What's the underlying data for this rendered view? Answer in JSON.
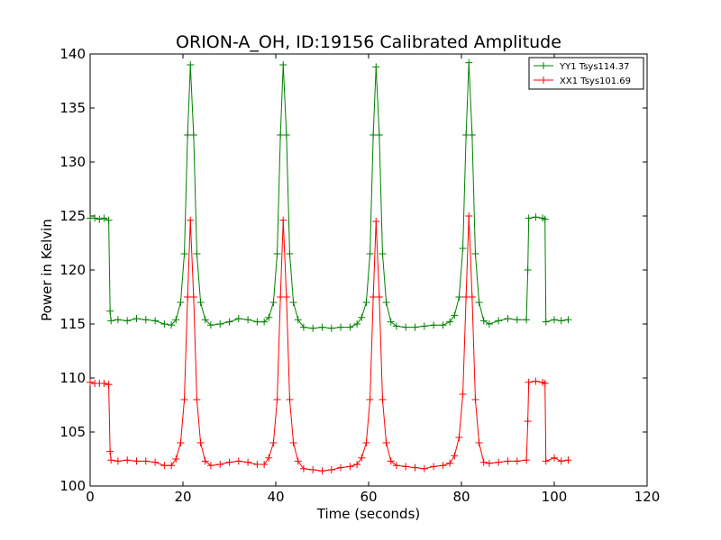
{
  "chart_data": {
    "type": "line",
    "title": "ORION-A_OH, ID:19156 Calibrated Amplitude",
    "xlabel": "Time (seconds)",
    "ylabel": "Power in Kelvin",
    "xlim": [
      0,
      120
    ],
    "ylim": [
      100,
      140
    ],
    "xticks": [
      "0",
      "20",
      "40",
      "60",
      "80",
      "100",
      "120"
    ],
    "yticks": [
      "100",
      "105",
      "110",
      "115",
      "120",
      "125",
      "130",
      "135",
      "140"
    ],
    "grid": false,
    "legend_position": "top-right",
    "series": [
      {
        "name": "YY1 Tsys114.37",
        "color": "#008000",
        "marker": "+",
        "points": [
          [
            0.0,
            124.8
          ],
          [
            1.0,
            124.8
          ],
          [
            2.0,
            124.7
          ],
          [
            3.0,
            124.8
          ],
          [
            4.0,
            124.6
          ],
          [
            4.3,
            116.2
          ],
          [
            4.5,
            115.3
          ],
          [
            6.0,
            115.4
          ],
          [
            8.0,
            115.3
          ],
          [
            10.0,
            115.5
          ],
          [
            12.0,
            115.4
          ],
          [
            14.0,
            115.3
          ],
          [
            16.0,
            115.0
          ],
          [
            17.5,
            114.9
          ],
          [
            18.5,
            115.4
          ],
          [
            19.5,
            117.0
          ],
          [
            20.3,
            121.5
          ],
          [
            21.0,
            132.5
          ],
          [
            21.6,
            139.0
          ],
          [
            22.3,
            132.5
          ],
          [
            23.0,
            121.5
          ],
          [
            23.8,
            117.0
          ],
          [
            24.8,
            115.4
          ],
          [
            26.0,
            114.9
          ],
          [
            28.0,
            115.0
          ],
          [
            30.0,
            115.2
          ],
          [
            32.0,
            115.5
          ],
          [
            34.0,
            115.4
          ],
          [
            36.0,
            115.2
          ],
          [
            37.5,
            115.2
          ],
          [
            38.5,
            115.6
          ],
          [
            39.5,
            117.0
          ],
          [
            40.3,
            121.5
          ],
          [
            41.0,
            132.5
          ],
          [
            41.6,
            139.0
          ],
          [
            42.3,
            132.5
          ],
          [
            43.0,
            121.5
          ],
          [
            43.8,
            117.0
          ],
          [
            44.8,
            115.4
          ],
          [
            46.0,
            114.7
          ],
          [
            48.0,
            114.6
          ],
          [
            50.0,
            114.7
          ],
          [
            52.0,
            114.6
          ],
          [
            54.0,
            114.7
          ],
          [
            56.0,
            114.7
          ],
          [
            57.5,
            115.0
          ],
          [
            58.5,
            115.6
          ],
          [
            59.5,
            117.0
          ],
          [
            60.3,
            121.5
          ],
          [
            61.0,
            132.5
          ],
          [
            61.6,
            138.8
          ],
          [
            62.3,
            132.5
          ],
          [
            63.0,
            121.5
          ],
          [
            63.8,
            117.0
          ],
          [
            64.8,
            115.2
          ],
          [
            66.0,
            114.8
          ],
          [
            68.0,
            114.7
          ],
          [
            70.0,
            114.7
          ],
          [
            72.0,
            114.8
          ],
          [
            74.0,
            114.9
          ],
          [
            76.0,
            114.9
          ],
          [
            77.5,
            115.2
          ],
          [
            78.5,
            115.8
          ],
          [
            79.5,
            117.5
          ],
          [
            80.3,
            122.0
          ],
          [
            81.0,
            132.5
          ],
          [
            81.6,
            139.2
          ],
          [
            82.3,
            132.5
          ],
          [
            83.0,
            121.5
          ],
          [
            83.8,
            117.0
          ],
          [
            84.8,
            115.3
          ],
          [
            86.0,
            115.0
          ],
          [
            88.0,
            115.3
          ],
          [
            90.0,
            115.5
          ],
          [
            92.0,
            115.4
          ],
          [
            94.0,
            115.4
          ],
          [
            94.3,
            120.0
          ],
          [
            94.5,
            124.8
          ],
          [
            96.0,
            124.9
          ],
          [
            97.5,
            124.8
          ],
          [
            98.0,
            124.7
          ],
          [
            98.2,
            115.2
          ],
          [
            100.0,
            115.4
          ],
          [
            101.5,
            115.3
          ],
          [
            103.0,
            115.4
          ]
        ]
      },
      {
        "name": "XX1 Tsys101.69",
        "color": "#ff0000",
        "marker": "+",
        "points": [
          [
            0.0,
            109.6
          ],
          [
            1.0,
            109.5
          ],
          [
            2.0,
            109.5
          ],
          [
            3.0,
            109.5
          ],
          [
            4.0,
            109.4
          ],
          [
            4.3,
            103.2
          ],
          [
            4.5,
            102.4
          ],
          [
            6.0,
            102.3
          ],
          [
            8.0,
            102.4
          ],
          [
            10.0,
            102.3
          ],
          [
            12.0,
            102.3
          ],
          [
            14.0,
            102.2
          ],
          [
            16.0,
            101.9
          ],
          [
            17.5,
            101.9
          ],
          [
            18.5,
            102.5
          ],
          [
            19.5,
            104.0
          ],
          [
            20.3,
            108.0
          ],
          [
            21.0,
            117.5
          ],
          [
            21.6,
            124.6
          ],
          [
            22.3,
            117.5
          ],
          [
            23.0,
            108.0
          ],
          [
            23.8,
            104.0
          ],
          [
            24.8,
            102.3
          ],
          [
            26.0,
            101.9
          ],
          [
            28.0,
            102.0
          ],
          [
            30.0,
            102.2
          ],
          [
            32.0,
            102.3
          ],
          [
            34.0,
            102.2
          ],
          [
            36.0,
            102.0
          ],
          [
            37.5,
            102.0
          ],
          [
            38.5,
            102.6
          ],
          [
            39.5,
            104.0
          ],
          [
            40.3,
            108.0
          ],
          [
            41.0,
            117.5
          ],
          [
            41.6,
            124.6
          ],
          [
            42.3,
            117.5
          ],
          [
            43.0,
            108.0
          ],
          [
            43.8,
            104.0
          ],
          [
            44.8,
            102.3
          ],
          [
            46.0,
            101.6
          ],
          [
            48.0,
            101.5
          ],
          [
            50.0,
            101.4
          ],
          [
            52.0,
            101.5
          ],
          [
            54.0,
            101.7
          ],
          [
            56.0,
            101.8
          ],
          [
            57.5,
            102.0
          ],
          [
            58.5,
            102.6
          ],
          [
            59.5,
            104.0
          ],
          [
            60.3,
            108.0
          ],
          [
            61.0,
            117.5
          ],
          [
            61.6,
            124.5
          ],
          [
            62.3,
            117.5
          ],
          [
            63.0,
            108.0
          ],
          [
            63.8,
            104.0
          ],
          [
            64.8,
            102.3
          ],
          [
            66.0,
            101.9
          ],
          [
            68.0,
            101.8
          ],
          [
            70.0,
            101.7
          ],
          [
            72.0,
            101.6
          ],
          [
            74.0,
            101.8
          ],
          [
            76.0,
            101.9
          ],
          [
            77.5,
            102.1
          ],
          [
            78.5,
            102.8
          ],
          [
            79.5,
            104.5
          ],
          [
            80.3,
            108.5
          ],
          [
            81.0,
            117.5
          ],
          [
            81.6,
            125.0
          ],
          [
            82.3,
            117.5
          ],
          [
            83.0,
            108.0
          ],
          [
            83.8,
            104.0
          ],
          [
            84.8,
            102.2
          ],
          [
            86.0,
            102.1
          ],
          [
            88.0,
            102.2
          ],
          [
            90.0,
            102.3
          ],
          [
            92.0,
            102.3
          ],
          [
            94.0,
            102.4
          ],
          [
            94.3,
            106.0
          ],
          [
            94.5,
            109.6
          ],
          [
            96.0,
            109.7
          ],
          [
            97.5,
            109.6
          ],
          [
            98.0,
            109.5
          ],
          [
            98.2,
            102.3
          ],
          [
            100.0,
            102.6
          ],
          [
            101.5,
            102.3
          ],
          [
            103.0,
            102.4
          ]
        ]
      }
    ]
  }
}
